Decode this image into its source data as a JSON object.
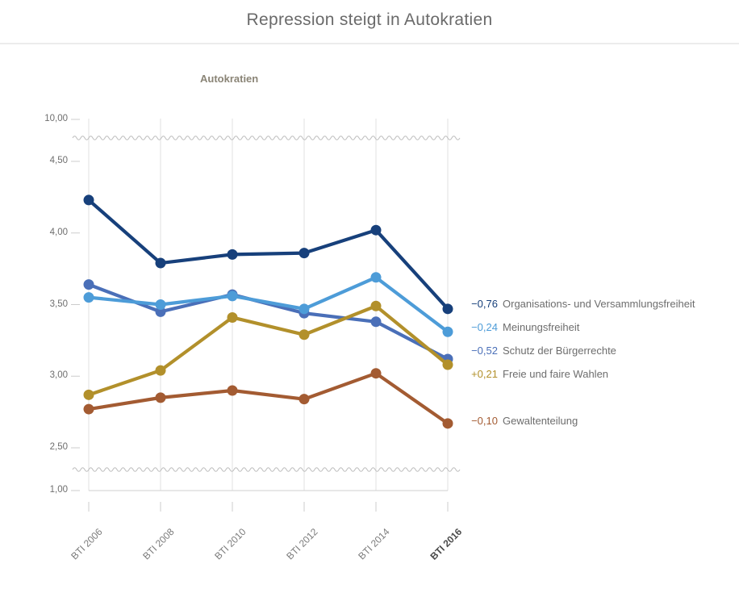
{
  "header": {
    "title": "Repression steigt in Autokratien"
  },
  "chart_data": {
    "type": "line",
    "title": "Autokratien",
    "categories": [
      "BTI 2006",
      "BTI 2008",
      "BTI 2010",
      "BTI 2012",
      "BTI 2014",
      "BTI 2016"
    ],
    "bold_category": "BTI 2016",
    "y_ticks": [
      {
        "label": "10,00",
        "value": 10
      },
      {
        "label": "4,50",
        "value": 4.5
      },
      {
        "label": "4,00",
        "value": 4.0
      },
      {
        "label": "3,50",
        "value": 3.5
      },
      {
        "label": "3,00",
        "value": 3.0
      },
      {
        "label": "2,50",
        "value": 2.5
      },
      {
        "label": "1,00",
        "value": 1
      }
    ],
    "axis_breaks": "wavy break lines between 4,50 and 10,00 and between 2,50 and 1,00",
    "grid": "vertical gridlines per category",
    "legend_position": "right of last data point",
    "series": [
      {
        "name": "Organisations- und Versammlungsfreiheit",
        "delta": "−0,76",
        "color": "#17407b",
        "values": [
          4.23,
          3.79,
          3.85,
          3.86,
          4.02,
          3.47
        ]
      },
      {
        "name": "Meinungsfreiheit",
        "delta": "−0,24",
        "color": "#4d9cd8",
        "values": [
          3.55,
          3.5,
          3.56,
          3.47,
          3.69,
          3.31
        ]
      },
      {
        "name": "Schutz der Bürgerrechte",
        "delta": "−0,52",
        "color": "#4a6fb8",
        "values": [
          3.64,
          3.45,
          3.57,
          3.44,
          3.38,
          3.12
        ]
      },
      {
        "name": "Freie und faire Wahlen",
        "delta": "+0,21",
        "color": "#b2902b",
        "values": [
          2.87,
          3.04,
          3.41,
          3.29,
          3.49,
          3.08
        ]
      },
      {
        "name": "Gewaltenteilung",
        "delta": "−0,10",
        "color": "#a35b32",
        "values": [
          2.77,
          2.85,
          2.9,
          2.84,
          3.02,
          2.67
        ]
      }
    ]
  }
}
